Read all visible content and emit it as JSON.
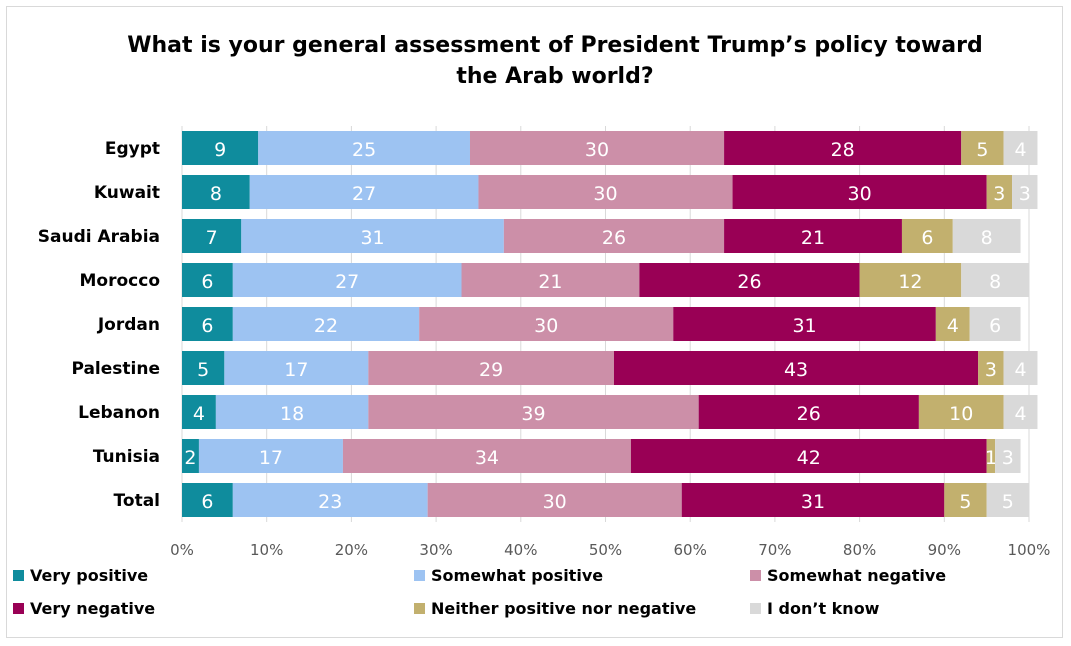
{
  "chart_data": {
    "type": "bar",
    "orientation": "horizontal",
    "stacked": true,
    "title": "What is your general assessment of President Trump’s policy toward\nthe Arab world?",
    "categories": [
      "Egypt",
      "Kuwait",
      "Saudi Arabia",
      "Morocco",
      "Jordan",
      "Palestine",
      "Lebanon",
      "Tunisia",
      "Total"
    ],
    "series": [
      {
        "name": "Very positive",
        "color": "#0f8c9d",
        "values": [
          9,
          8,
          7,
          6,
          6,
          5,
          4,
          2,
          6
        ]
      },
      {
        "name": "Somewhat positive",
        "color": "#9dc3f2",
        "values": [
          25,
          27,
          31,
          27,
          22,
          17,
          18,
          17,
          23
        ]
      },
      {
        "name": "Somewhat negative",
        "color": "#cc8fa8",
        "values": [
          30,
          30,
          26,
          21,
          30,
          29,
          39,
          34,
          30
        ]
      },
      {
        "name": "Very negative",
        "color": "#990055",
        "values": [
          28,
          30,
          21,
          26,
          31,
          43,
          26,
          42,
          31
        ]
      },
      {
        "name": "Neither positive nor negative",
        "color": "#c2b06e",
        "values": [
          5,
          3,
          6,
          12,
          4,
          3,
          10,
          1,
          5
        ]
      },
      {
        "name": "I don’t know",
        "color": "#d9d9d9",
        "values": [
          4,
          3,
          8,
          8,
          6,
          4,
          4,
          3,
          5
        ]
      }
    ],
    "xlim": [
      0,
      100
    ],
    "x_ticks": [
      "0%",
      "10%",
      "20%",
      "30%",
      "40%",
      "50%",
      "60%",
      "70%",
      "80%",
      "90%",
      "100%"
    ],
    "grid": true,
    "legend_position": "bottom"
  }
}
